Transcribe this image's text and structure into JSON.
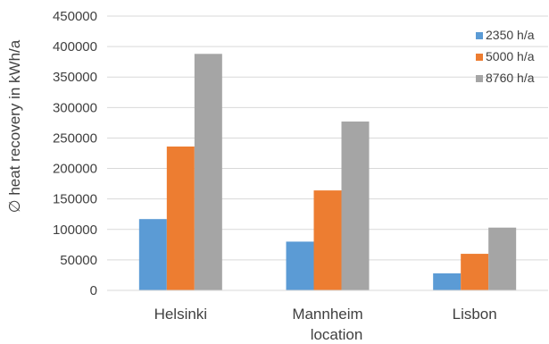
{
  "chart_data": {
    "type": "bar",
    "categories": [
      "Helsinki",
      "Mannheim",
      "Lisbon"
    ],
    "series": [
      {
        "name": "2350 h/a",
        "values": [
          117000,
          80000,
          28000
        ],
        "color": "#5B9BD5"
      },
      {
        "name": "5000 h/a",
        "values": [
          236000,
          164000,
          60000
        ],
        "color": "#ED7D31"
      },
      {
        "name": "8760 h/a",
        "values": [
          388000,
          277000,
          103000
        ],
        "color": "#A5A5A5"
      }
    ],
    "y_ticks": [
      "0",
      "50000",
      "100000",
      "150000",
      "200000",
      "250000",
      "300000",
      "350000",
      "400000",
      "450000"
    ],
    "ylim": [
      0,
      450000
    ],
    "xlabel": "location",
    "ylabel": "∅ heat recovery in kWh/a",
    "grid": true,
    "legend_position": "top-right"
  }
}
